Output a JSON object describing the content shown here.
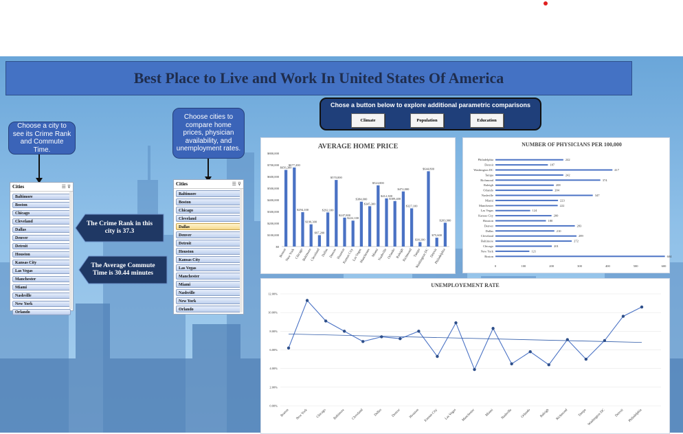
{
  "title": "Best Place to Live and Work In United States Of America",
  "callouts": {
    "left": "Choose a city to see its Crime Rank and Commute Time.",
    "right": "Choose cities to compare home prices, physician availability, and unemployment rates."
  },
  "slicer_label": "Cities",
  "slicer_left_items": [
    "Baltimore",
    "Boston",
    "Chicago",
    "Cleveland",
    "Dallas",
    "Denver",
    "Detroit",
    "Houston",
    "Kansas City",
    "Las Vegas",
    "Manchester",
    "Miami",
    "Nashville",
    "New York",
    "Orlando"
  ],
  "slicer_right_items": [
    "Baltimore",
    "Boston",
    "Chicago",
    "Cleveland",
    "Dallas",
    "Denver",
    "Detroit",
    "Houston",
    "Kansas City",
    "Las Vegas",
    "Manchester",
    "Miami",
    "Nashville",
    "New York",
    "Orlando"
  ],
  "slicer_right_selected": "Dallas",
  "info": {
    "crime": "The Crime Rank in this city is 37.3",
    "commute": "The Average Commute Time is 30.44 minutes"
  },
  "button_bar": {
    "header": "Chose a button below to explore additional parametric comparisons",
    "buttons": [
      "Climate",
      "Population",
      "Education"
    ]
  },
  "colors": {
    "banner": "#4472c4",
    "bar": "#4a72c4",
    "info_shape": "#1f3864"
  },
  "chart_data": [
    {
      "type": "bar",
      "title": "AVERAGE HOME PRICE",
      "categories": [
        "Boston",
        "New York",
        "Chicago",
        "Baltimore",
        "Cleveland",
        "Dallas",
        "Denver",
        "Houston",
        "Kansas City",
        "Las Vegas",
        "Manchester",
        "Miami",
        "Nashville",
        "Orlando",
        "Raleigh",
        "Richmond",
        "Tampa",
        "Washington DC",
        "Detroit",
        "Philadelphia"
      ],
      "values": [
        656300,
        677200,
        294100,
        190300,
        97200,
        292100,
        570000,
        247800,
        222100,
        384000,
        345300,
        524000,
        412300,
        389400,
        472000,
        327100,
        38100,
        644800,
        75600,
        203900
      ],
      "data_labels": [
        "$656,300",
        "$677,200",
        "$294,100",
        "$190,300",
        "$97,200",
        "$292,100",
        "$570,000",
        "$247,800",
        "$222,100",
        "$384,000",
        "$345,300",
        "$524,000",
        "$412,300",
        "$389,400",
        "$472,000",
        "$327,100",
        "$38,100",
        "$644,800",
        "$75,600",
        "$203,900"
      ],
      "yticks": [
        "$0",
        "$100,000",
        "$200,000",
        "$300,000",
        "$400,000",
        "$500,000",
        "$600,000",
        "$700,000",
        "$800,000"
      ],
      "ylim": [
        0,
        800000
      ]
    },
    {
      "type": "bar",
      "orientation": "horizontal",
      "title": "NUMBER OF PHYSICIANS PER 100,000",
      "categories": [
        "Philadelphia",
        "Detroit",
        "Washington DC",
        "Tampa",
        "Richmond",
        "Raleigh",
        "Orlando",
        "Nashville",
        "Miami",
        "Manchester",
        "Las Vegas",
        "Kansas City",
        "Houston",
        "Denver",
        "Dallas",
        "Cleveland",
        "Baltimore",
        "Chicago",
        "New York",
        "Boston"
      ],
      "values": [
        242,
        187,
        417,
        242,
        374,
        208,
        204,
        347,
        223,
        222,
        124,
        200,
        180,
        283,
        210,
        289,
        272,
        201,
        121,
        604
      ],
      "xticks": [
        "0",
        "100",
        "200",
        "300",
        "400",
        "500",
        "600"
      ],
      "xlim": [
        0,
        600
      ]
    },
    {
      "type": "line",
      "title": "UNEMPLOYEMENT RATE",
      "categories": [
        "Boston",
        "New York",
        "Chicago",
        "Baltimore",
        "Cleveland",
        "Dallas",
        "Denver",
        "Houston",
        "Kansas City",
        "Las Vegas",
        "Manchester",
        "Miami",
        "Nashville",
        "Orlando",
        "Raleigh",
        "Richmond",
        "Tampa",
        "Washington DC",
        "Detroit",
        "Philadelphia"
      ],
      "values": [
        6.2,
        11.3,
        9.1,
        8.0,
        6.9,
        7.4,
        7.2,
        8.0,
        5.3,
        8.9,
        3.9,
        8.3,
        4.5,
        5.8,
        4.4,
        7.1,
        5.0,
        7.0,
        9.6,
        10.6
      ],
      "trendline": [
        7.7,
        6.8
      ],
      "yticks": [
        "0.00%",
        "2.00%",
        "4.00%",
        "6.00%",
        "8.00%",
        "10.00%",
        "12.00%"
      ],
      "ylim": [
        0,
        12
      ]
    }
  ]
}
